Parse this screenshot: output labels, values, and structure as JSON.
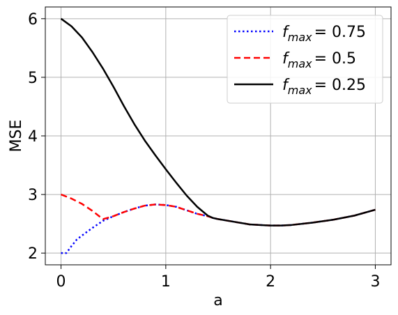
{
  "chart_data": {
    "type": "line",
    "title": "",
    "xlabel": "a",
    "ylabel": "MSE",
    "xlim": [
      -0.15,
      3.15
    ],
    "ylim": [
      1.8,
      6.2
    ],
    "xticks": [
      0,
      1,
      2,
      3
    ],
    "yticks": [
      2,
      3,
      4,
      5,
      6
    ],
    "xtick_labels": [
      "0",
      "1",
      "2",
      "3"
    ],
    "ytick_labels": [
      "2",
      "3",
      "4",
      "5",
      "6"
    ],
    "grid": true,
    "legend_position": "top-right",
    "series": [
      {
        "name_var": "f",
        "name_sub": "max",
        "name_value": "= 0.75",
        "color": "#0000ff",
        "style": "dotted",
        "x": [
          0,
          0.05,
          0.1,
          0.15,
          0.2,
          0.3,
          0.4,
          0.5,
          0.6,
          0.7,
          0.8,
          0.9,
          1.0,
          1.1,
          1.2,
          1.3,
          1.4,
          1.45,
          1.5,
          1.6,
          1.8,
          2.0,
          2.1,
          2.2,
          2.4,
          2.6,
          2.8,
          3.0
        ],
        "y": [
          2.0,
          2.0,
          2.12,
          2.23,
          2.3,
          2.43,
          2.55,
          2.63,
          2.7,
          2.76,
          2.81,
          2.83,
          2.82,
          2.79,
          2.73,
          2.67,
          2.63,
          2.6,
          2.58,
          2.55,
          2.49,
          2.47,
          2.47,
          2.48,
          2.52,
          2.57,
          2.64,
          2.74
        ]
      },
      {
        "name_var": "f",
        "name_sub": "max",
        "name_value": "= 0.5",
        "color": "#ff0000",
        "style": "dashed",
        "x": [
          0,
          0.1,
          0.2,
          0.3,
          0.4,
          0.5,
          0.6,
          0.7,
          0.8,
          0.9,
          1.0,
          1.1,
          1.2,
          1.3,
          1.4,
          1.45,
          1.5,
          1.6,
          1.8,
          2.0,
          2.1,
          2.2,
          2.4,
          2.6,
          2.8,
          3.0
        ],
        "y": [
          3.0,
          2.93,
          2.84,
          2.72,
          2.58,
          2.63,
          2.7,
          2.76,
          2.81,
          2.83,
          2.82,
          2.79,
          2.73,
          2.67,
          2.63,
          2.6,
          2.58,
          2.55,
          2.49,
          2.47,
          2.47,
          2.48,
          2.52,
          2.57,
          2.64,
          2.74
        ]
      },
      {
        "name_var": "f",
        "name_sub": "max",
        "name_value": "= 0.25",
        "color": "#000000",
        "style": "solid",
        "x": [
          0,
          0.1,
          0.2,
          0.3,
          0.4,
          0.5,
          0.6,
          0.7,
          0.8,
          0.9,
          1.0,
          1.1,
          1.2,
          1.3,
          1.4,
          1.45,
          1.5,
          1.6,
          1.8,
          2.0,
          2.1,
          2.2,
          2.4,
          2.6,
          2.8,
          3.0
        ],
        "y": [
          6.0,
          5.87,
          5.68,
          5.43,
          5.15,
          4.84,
          4.51,
          4.2,
          3.92,
          3.67,
          3.43,
          3.2,
          2.98,
          2.79,
          2.64,
          2.6,
          2.58,
          2.55,
          2.49,
          2.47,
          2.47,
          2.48,
          2.52,
          2.57,
          2.64,
          2.74
        ]
      }
    ]
  }
}
